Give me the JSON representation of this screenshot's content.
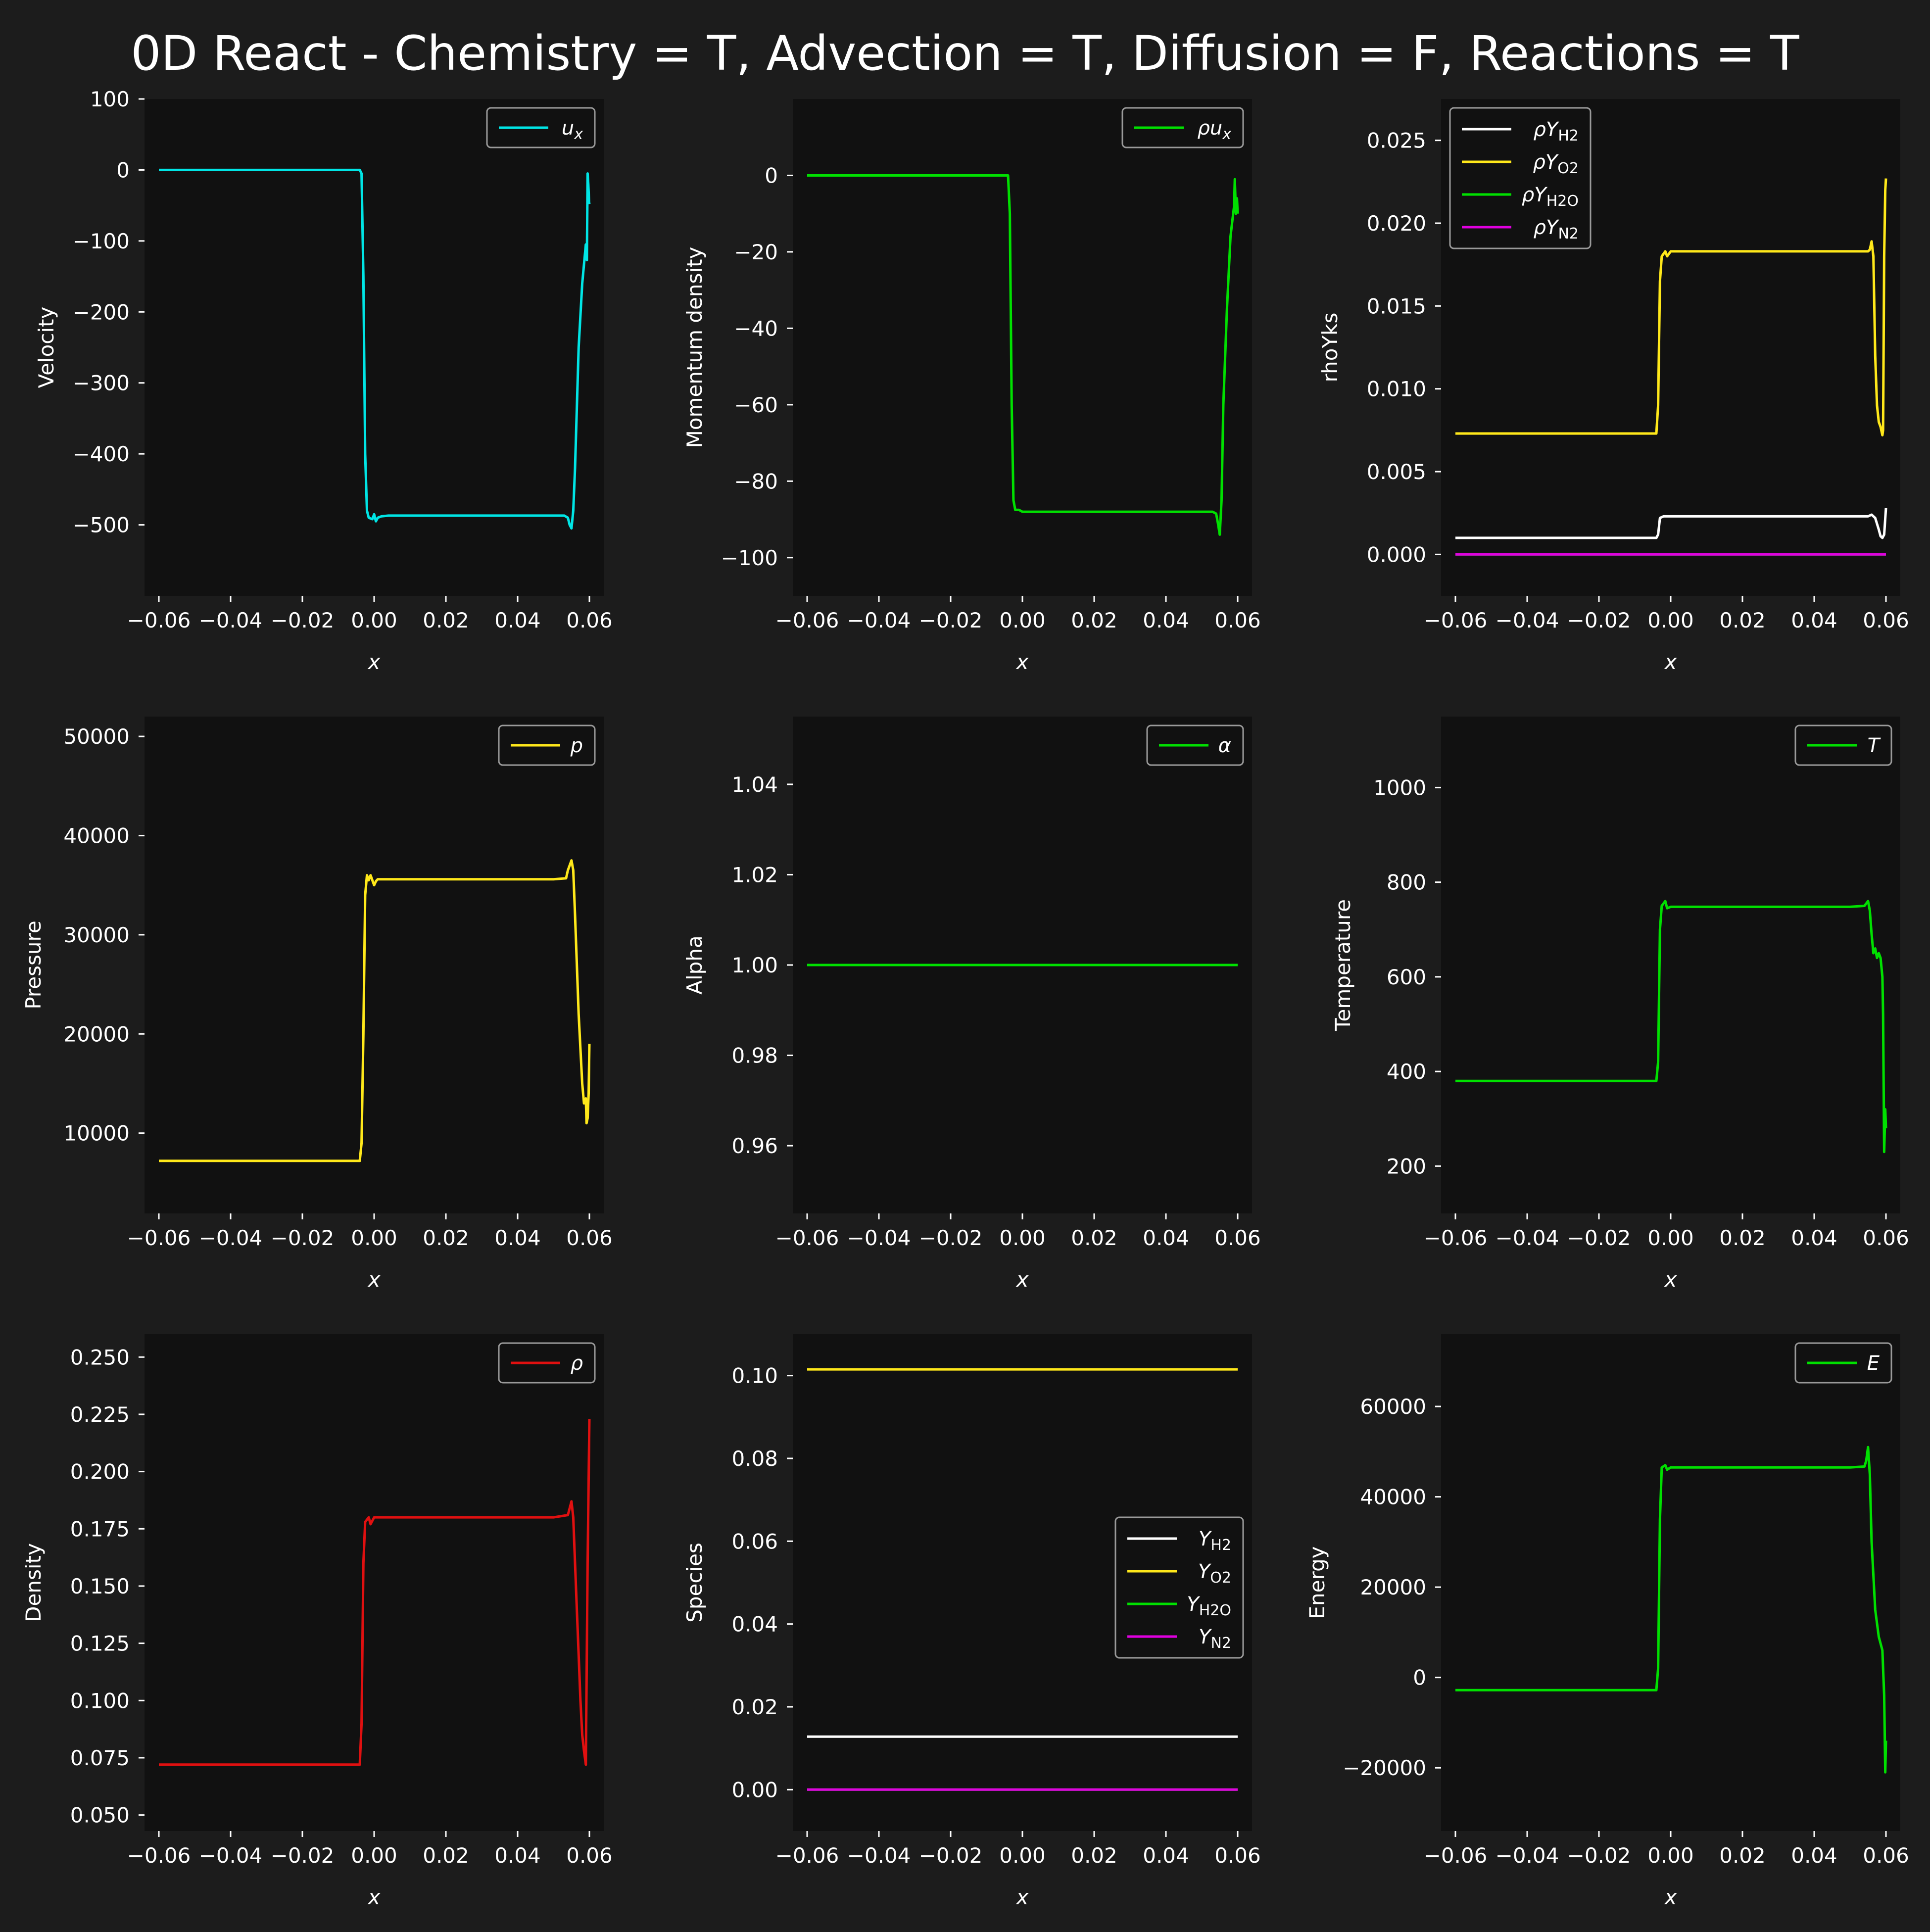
{
  "figure": {
    "title": "0D React - Chemistry = T, Advection = T, Diffusion = F, Reactions = T",
    "background": "#1c1c1c",
    "axes_background": "#111111"
  },
  "chart_data": [
    {
      "type": "line",
      "xlabel": "x",
      "ylabel": "Velocity",
      "xlim": [
        -0.064,
        0.064
      ],
      "ylim": [
        -600,
        100
      ],
      "xticks": [
        -0.06,
        -0.04,
        -0.02,
        0.0,
        0.02,
        0.04,
        0.06
      ],
      "xtick_labels": [
        "−0.06",
        "−0.04",
        "−0.02",
        "0.00",
        "0.02",
        "0.04",
        "0.06"
      ],
      "yticks": [
        -500,
        -400,
        -300,
        -200,
        -100,
        0,
        100
      ],
      "ytick_labels": [
        "−500",
        "−400",
        "−300",
        "−200",
        "−100",
        "0",
        "100"
      ],
      "legend": {
        "location": "upper right"
      },
      "series": [
        {
          "name": "u",
          "name_sub": "x",
          "color": "#00e5e5",
          "x": [
            -0.06,
            -0.004,
            -0.0035,
            -0.003,
            -0.0025,
            -0.002,
            -0.0015,
            -0.0005,
            0.0,
            0.0005,
            0.001,
            0.002,
            0.004,
            0.01,
            0.05,
            0.053,
            0.054,
            0.0545,
            0.055,
            0.0555,
            0.056,
            0.057,
            0.058,
            0.059,
            0.0593,
            0.0595,
            0.0597,
            0.0599,
            0.06
          ],
          "y": [
            0,
            0,
            -5,
            -150,
            -400,
            -480,
            -490,
            -492,
            -485,
            -495,
            -490,
            -488,
            -487,
            -487,
            -487,
            -487,
            -490,
            -500,
            -505,
            -480,
            -420,
            -250,
            -160,
            -105,
            -127,
            -5,
            -20,
            -45,
            -48
          ]
        }
      ]
    },
    {
      "type": "line",
      "xlabel": "x",
      "ylabel": "Momentum density",
      "xlim": [
        -0.064,
        0.064
      ],
      "ylim": [
        -110,
        20
      ],
      "xticks": [
        -0.06,
        -0.04,
        -0.02,
        0.0,
        0.02,
        0.04,
        0.06
      ],
      "xtick_labels": [
        "−0.06",
        "−0.04",
        "−0.02",
        "0.00",
        "0.02",
        "0.04",
        "0.06"
      ],
      "yticks": [
        -100,
        -80,
        -60,
        -40,
        -20,
        0
      ],
      "ytick_labels": [
        "−100",
        "−80",
        "−60",
        "−40",
        "−20",
        "0"
      ],
      "legend": {
        "location": "upper right"
      },
      "series": [
        {
          "name": "ρu",
          "name_sub": "x",
          "color": "#00e000",
          "x": [
            -0.06,
            -0.004,
            -0.0035,
            -0.003,
            -0.0025,
            -0.002,
            -0.001,
            0.0,
            0.001,
            0.002,
            0.01,
            0.05,
            0.053,
            0.054,
            0.0545,
            0.055,
            0.0555,
            0.056,
            0.057,
            0.058,
            0.0585,
            0.059,
            0.0592,
            0.0595,
            0.0598,
            0.06
          ],
          "y": [
            0,
            0,
            -10,
            -60,
            -85,
            -87.5,
            -87.5,
            -88,
            -88,
            -88,
            -88,
            -88,
            -88,
            -88.5,
            -91,
            -94,
            -85,
            -60,
            -35,
            -16,
            -12,
            -8,
            -1,
            -10,
            -6,
            -10
          ]
        }
      ]
    },
    {
      "type": "line",
      "xlabel": "x",
      "ylabel": "rhoYks",
      "xlim": [
        -0.064,
        0.064
      ],
      "ylim": [
        -0.0025,
        0.0275
      ],
      "xticks": [
        -0.06,
        -0.04,
        -0.02,
        0.0,
        0.02,
        0.04,
        0.06
      ],
      "xtick_labels": [
        "−0.06",
        "−0.04",
        "−0.02",
        "0.00",
        "0.02",
        "0.04",
        "0.06"
      ],
      "yticks": [
        0.0,
        0.005,
        0.01,
        0.015,
        0.02,
        0.025
      ],
      "ytick_labels": [
        "0.000",
        "0.005",
        "0.010",
        "0.015",
        "0.020",
        "0.025"
      ],
      "legend": {
        "location": "upper left"
      },
      "series": [
        {
          "name": "ρY",
          "name_sub": "H2",
          "color": "#ffffff",
          "x": [
            -0.06,
            -0.004,
            -0.0035,
            -0.003,
            -0.002,
            0.0,
            0.055,
            0.056,
            0.057,
            0.058,
            0.0585,
            0.059,
            0.0595,
            0.06
          ],
          "y": [
            0.001,
            0.001,
            0.0012,
            0.0022,
            0.0023,
            0.0023,
            0.0023,
            0.0024,
            0.0022,
            0.0015,
            0.0011,
            0.001,
            0.0012,
            0.0028
          ]
        },
        {
          "name": "ρY",
          "name_sub": "O2",
          "color": "#ffe81a",
          "x": [
            -0.06,
            -0.004,
            -0.0035,
            -0.003,
            -0.0025,
            -0.0015,
            -0.001,
            0.0,
            0.055,
            0.0555,
            0.056,
            0.0565,
            0.057,
            0.0575,
            0.058,
            0.0585,
            0.059,
            0.0592,
            0.0595,
            0.0598,
            0.06
          ],
          "y": [
            0.0073,
            0.0073,
            0.009,
            0.0165,
            0.018,
            0.0183,
            0.018,
            0.0183,
            0.0183,
            0.0184,
            0.0189,
            0.018,
            0.012,
            0.009,
            0.008,
            0.0077,
            0.0072,
            0.0075,
            0.018,
            0.022,
            0.0227
          ]
        },
        {
          "name": "ρY",
          "name_sub": "H2O",
          "color": "#00e000",
          "x": [
            -0.06,
            0.06
          ],
          "y": [
            0.0,
            0.0
          ]
        },
        {
          "name": "ρY",
          "name_sub": "N2",
          "color": "#e000e0",
          "x": [
            -0.06,
            0.06
          ],
          "y": [
            0.0,
            0.0
          ]
        }
      ]
    },
    {
      "type": "line",
      "xlabel": "x",
      "ylabel": "Pressure",
      "xlim": [
        -0.064,
        0.064
      ],
      "ylim": [
        1900,
        52000
      ],
      "xticks": [
        -0.06,
        -0.04,
        -0.02,
        0.0,
        0.02,
        0.04,
        0.06
      ],
      "xtick_labels": [
        "−0.06",
        "−0.04",
        "−0.02",
        "0.00",
        "0.02",
        "0.04",
        "0.06"
      ],
      "yticks": [
        10000,
        20000,
        30000,
        40000,
        50000
      ],
      "ytick_labels": [
        "10000",
        "20000",
        "30000",
        "40000",
        "50000"
      ],
      "legend": {
        "location": "upper right"
      },
      "series": [
        {
          "name": "p",
          "name_sub": "",
          "color": "#ffe81a",
          "x": [
            -0.06,
            -0.004,
            -0.0035,
            -0.003,
            -0.0025,
            -0.002,
            -0.0015,
            -0.001,
            0.0,
            0.0005,
            0.001,
            0.002,
            0.01,
            0.05,
            0.0535,
            0.054,
            0.055,
            0.0555,
            0.056,
            0.057,
            0.058,
            0.0585,
            0.059,
            0.0592,
            0.0595,
            0.0598,
            0.06
          ],
          "y": [
            7200,
            7200,
            9000,
            20000,
            34000,
            36000,
            35500,
            36000,
            35000,
            35400,
            35600,
            35600,
            35600,
            35600,
            35700,
            36500,
            37500,
            36500,
            32000,
            22000,
            15000,
            13000,
            13500,
            11000,
            11500,
            14000,
            19000
          ]
        }
      ]
    },
    {
      "type": "line",
      "xlabel": "x",
      "ylabel": "Alpha",
      "xlim": [
        -0.064,
        0.064
      ],
      "ylim": [
        0.945,
        1.055
      ],
      "xticks": [
        -0.06,
        -0.04,
        -0.02,
        0.0,
        0.02,
        0.04,
        0.06
      ],
      "xtick_labels": [
        "−0.06",
        "−0.04",
        "−0.02",
        "0.00",
        "0.02",
        "0.04",
        "0.06"
      ],
      "yticks": [
        0.96,
        0.98,
        1.0,
        1.02,
        1.04
      ],
      "ytick_labels": [
        "0.96",
        "0.98",
        "1.00",
        "1.02",
        "1.04"
      ],
      "legend": {
        "location": "upper right"
      },
      "series": [
        {
          "name": "α",
          "name_sub": "",
          "color": "#00e000",
          "x": [
            -0.06,
            0.06
          ],
          "y": [
            1.0,
            1.0
          ]
        }
      ]
    },
    {
      "type": "line",
      "xlabel": "x",
      "ylabel": "Temperature",
      "xlim": [
        -0.064,
        0.064
      ],
      "ylim": [
        100,
        1150
      ],
      "xticks": [
        -0.06,
        -0.04,
        -0.02,
        0.0,
        0.02,
        0.04,
        0.06
      ],
      "xtick_labels": [
        "−0.06",
        "−0.04",
        "−0.02",
        "0.00",
        "0.02",
        "0.04",
        "0.06"
      ],
      "yticks": [
        200,
        400,
        600,
        800,
        1000
      ],
      "ytick_labels": [
        "200",
        "400",
        "600",
        "800",
        "1000"
      ],
      "legend": {
        "location": "upper right"
      },
      "series": [
        {
          "name": "T",
          "name_sub": "",
          "color": "#00e000",
          "x": [
            -0.06,
            -0.004,
            -0.0035,
            -0.003,
            -0.0025,
            -0.0015,
            -0.001,
            0.0,
            0.01,
            0.05,
            0.054,
            0.055,
            0.0555,
            0.056,
            0.0565,
            0.057,
            0.0575,
            0.058,
            0.0585,
            0.059,
            0.0592,
            0.0595,
            0.0598,
            0.06
          ],
          "y": [
            380,
            380,
            420,
            700,
            750,
            760,
            745,
            748,
            748,
            748,
            750,
            760,
            740,
            690,
            650,
            660,
            640,
            650,
            640,
            600,
            520,
            230,
            320,
            280
          ]
        }
      ]
    },
    {
      "type": "line",
      "xlabel": "x",
      "ylabel": "Density",
      "xlim": [
        -0.064,
        0.064
      ],
      "ylim": [
        0.043,
        0.26
      ],
      "xticks": [
        -0.06,
        -0.04,
        -0.02,
        0.0,
        0.02,
        0.04,
        0.06
      ],
      "xtick_labels": [
        "−0.06",
        "−0.04",
        "−0.02",
        "0.00",
        "0.02",
        "0.04",
        "0.06"
      ],
      "yticks": [
        0.05,
        0.075,
        0.1,
        0.125,
        0.15,
        0.175,
        0.2,
        0.225,
        0.25
      ],
      "ytick_labels": [
        "0.050",
        "0.075",
        "0.100",
        "0.125",
        "0.150",
        "0.175",
        "0.200",
        "0.225",
        "0.250"
      ],
      "legend": {
        "location": "upper right"
      },
      "series": [
        {
          "name": "ρ",
          "name_sub": "",
          "color": "#e01010",
          "x": [
            -0.06,
            -0.004,
            -0.0035,
            -0.003,
            -0.0025,
            -0.0015,
            -0.001,
            0.0,
            0.001,
            0.01,
            0.05,
            0.054,
            0.055,
            0.0555,
            0.056,
            0.0565,
            0.057,
            0.0575,
            0.058,
            0.0585,
            0.059,
            0.0595,
            0.06
          ],
          "y": [
            0.072,
            0.072,
            0.09,
            0.16,
            0.178,
            0.18,
            0.177,
            0.18,
            0.18,
            0.18,
            0.18,
            0.181,
            0.187,
            0.18,
            0.16,
            0.14,
            0.12,
            0.1,
            0.085,
            0.078,
            0.072,
            0.16,
            0.223
          ]
        }
      ]
    },
    {
      "type": "line",
      "xlabel": "x",
      "ylabel": "Species",
      "xlim": [
        -0.064,
        0.064
      ],
      "ylim": [
        -0.01,
        0.11
      ],
      "xticks": [
        -0.06,
        -0.04,
        -0.02,
        0.0,
        0.02,
        0.04,
        0.06
      ],
      "xtick_labels": [
        "−0.06",
        "−0.04",
        "−0.02",
        "0.00",
        "0.02",
        "0.04",
        "0.06"
      ],
      "yticks": [
        0.0,
        0.02,
        0.04,
        0.06,
        0.08,
        0.1
      ],
      "ytick_labels": [
        "0.00",
        "0.02",
        "0.04",
        "0.06",
        "0.08",
        "0.10"
      ],
      "legend": {
        "location": "center right"
      },
      "series": [
        {
          "name": "Y",
          "name_sub": "H2",
          "color": "#ffffff",
          "x": [
            -0.06,
            0.06
          ],
          "y": [
            0.0128,
            0.0128
          ]
        },
        {
          "name": "Y",
          "name_sub": "O2",
          "color": "#ffe81a",
          "x": [
            -0.06,
            0.06
          ],
          "y": [
            0.1015,
            0.1015
          ]
        },
        {
          "name": "Y",
          "name_sub": "H2O",
          "color": "#00e000",
          "x": [
            -0.06,
            0.06
          ],
          "y": [
            0.0,
            0.0
          ]
        },
        {
          "name": "Y",
          "name_sub": "N2",
          "color": "#e000e0",
          "x": [
            -0.06,
            0.06
          ],
          "y": [
            0.0,
            0.0
          ]
        }
      ]
    },
    {
      "type": "line",
      "xlabel": "x",
      "ylabel": "Energy",
      "xlim": [
        -0.064,
        0.064
      ],
      "ylim": [
        -34000,
        76000
      ],
      "xticks": [
        -0.06,
        -0.04,
        -0.02,
        0.0,
        0.02,
        0.04,
        0.06
      ],
      "xtick_labels": [
        "−0.06",
        "−0.04",
        "−0.02",
        "0.00",
        "0.02",
        "0.04",
        "0.06"
      ],
      "yticks": [
        -20000,
        0,
        20000,
        40000,
        60000
      ],
      "ytick_labels": [
        "−20000",
        "0",
        "20000",
        "40000",
        "60000"
      ],
      "legend": {
        "location": "upper right"
      },
      "series": [
        {
          "name": "E",
          "name_sub": "",
          "color": "#00e000",
          "x": [
            -0.06,
            -0.004,
            -0.0035,
            -0.003,
            -0.0025,
            -0.0015,
            -0.001,
            0.0,
            0.01,
            0.05,
            0.054,
            0.0545,
            0.055,
            0.0555,
            0.056,
            0.057,
            0.058,
            0.059,
            0.0592,
            0.0595,
            0.0598,
            0.06
          ],
          "y": [
            -2800,
            -2800,
            2000,
            35000,
            46500,
            47000,
            46000,
            46500,
            46500,
            46500,
            46700,
            48000,
            51000,
            45000,
            30000,
            15000,
            9000,
            6000,
            2000,
            -4000,
            -21000,
            -14000
          ]
        }
      ]
    }
  ]
}
